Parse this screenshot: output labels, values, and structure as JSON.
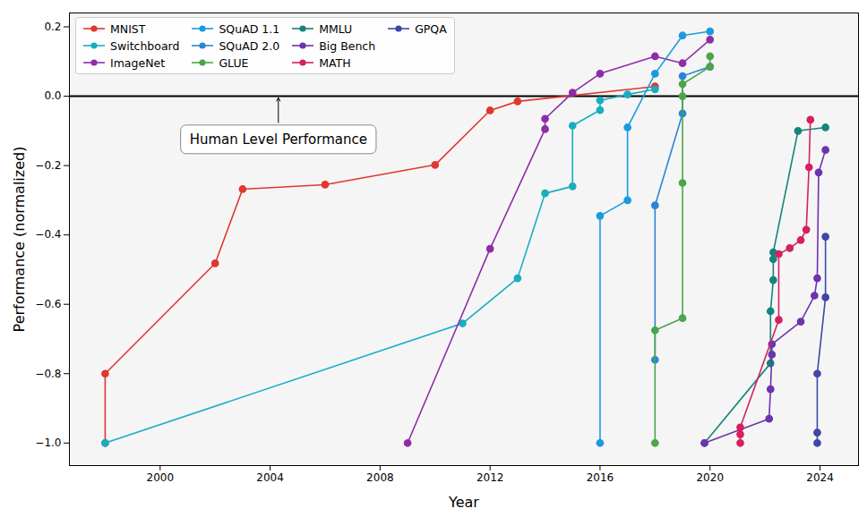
{
  "chart_data": {
    "type": "line",
    "xlabel": "Year",
    "ylabel": "Performance (normalized)",
    "xlim": [
      1996.7,
      2025.4
    ],
    "xticks": [
      2000,
      2004,
      2008,
      2012,
      2016,
      2020,
      2024
    ],
    "ylim": [
      -1.065,
      0.24
    ],
    "yticks": [
      {
        "value": -1.0,
        "label": "−1.0"
      },
      {
        "value": -0.8,
        "label": "−0.8"
      },
      {
        "value": -0.6,
        "label": "−0.6"
      },
      {
        "value": -0.4,
        "label": "−0.4"
      },
      {
        "value": -0.2,
        "label": "−0.2"
      },
      {
        "value": 0.0,
        "label": "0.0"
      },
      {
        "value": 0.2,
        "label": "0.2"
      }
    ],
    "grid": false,
    "legend": "upper left",
    "marker": "circle",
    "hlines": [
      {
        "y": 0,
        "color": "#000000"
      }
    ],
    "annotations": [
      {
        "text": "Human Level Performance",
        "x": 2004.3,
        "y": -0.125,
        "arrow_to": [
          2004.3,
          -0.005
        ]
      }
    ],
    "series": [
      {
        "name": "MNIST",
        "color": "#e0372f",
        "x": [
          1998,
          1998,
          2002,
          2003,
          2006,
          2010,
          2012,
          2013,
          2018
        ],
        "values": [
          -1.0,
          -0.8,
          -0.482,
          -0.268,
          -0.255,
          -0.198,
          -0.041,
          -0.015,
          0.028
        ]
      },
      {
        "name": "Switchboard",
        "color": "#17aebf",
        "x": [
          1998,
          2011,
          2013,
          2014,
          2015,
          2015,
          2016,
          2016,
          2017,
          2018
        ],
        "values": [
          -1.0,
          -0.655,
          -0.525,
          -0.28,
          -0.26,
          -0.085,
          -0.04,
          -0.012,
          0.005,
          0.02
        ]
      },
      {
        "name": "ImageNet",
        "color": "#8f2ca8",
        "x": [
          2009,
          2012,
          2014,
          2014,
          2015,
          2016,
          2018,
          2019,
          2020
        ],
        "values": [
          -1.0,
          -0.44,
          -0.095,
          -0.065,
          0.01,
          0.065,
          0.115,
          0.095,
          0.163
        ]
      },
      {
        "name": "SQuAD 1.1",
        "color": "#1a9be0",
        "x": [
          2016,
          2016,
          2017,
          2017,
          2018,
          2019,
          2020
        ],
        "values": [
          -1.0,
          -0.345,
          -0.3,
          -0.09,
          0.065,
          0.175,
          0.187
        ]
      },
      {
        "name": "SQuAD 2.0",
        "color": "#2a85d6",
        "x": [
          2018,
          2018,
          2019,
          2019,
          2020
        ],
        "values": [
          -0.76,
          -0.315,
          -0.05,
          0.058,
          0.085
        ]
      },
      {
        "name": "GLUE",
        "color": "#4ba54a",
        "x": [
          2018,
          2018,
          2019,
          2019,
          2019,
          2019,
          2020,
          2020
        ],
        "values": [
          -1.0,
          -0.675,
          -0.64,
          -0.25,
          0.0,
          0.035,
          0.085,
          0.115
        ]
      },
      {
        "name": "MMLU",
        "color": "#14857a",
        "x": [
          2019.8,
          2022.2,
          2022.2,
          2022.3,
          2022.3,
          2022.3,
          2023.2,
          2024.2
        ],
        "values": [
          -1.0,
          -0.77,
          -0.62,
          -0.53,
          -0.47,
          -0.45,
          -0.1,
          -0.09
        ]
      },
      {
        "name": "Big Bench",
        "color": "#6f32b0",
        "x": [
          2019.8,
          2022.15,
          2022.2,
          2022.25,
          2022.25,
          2023.3,
          2023.8,
          2023.9,
          2023.95,
          2024.2
        ],
        "values": [
          -1.0,
          -0.93,
          -0.845,
          -0.745,
          -0.715,
          -0.65,
          -0.575,
          -0.525,
          -0.22,
          -0.155
        ]
      },
      {
        "name": "MATH",
        "color": "#d6205f",
        "x": [
          2021.1,
          2021.1,
          2021.1,
          2022.5,
          2022.5,
          2022.9,
          2023.3,
          2023.5,
          2023.6,
          2023.65
        ],
        "values": [
          -1.0,
          -0.975,
          -0.955,
          -0.645,
          -0.455,
          -0.438,
          -0.415,
          -0.385,
          -0.205,
          -0.068
        ]
      },
      {
        "name": "GPQA",
        "color": "#3f46a8",
        "x": [
          2023.9,
          2023.9,
          2023.9,
          2024.2,
          2024.2
        ],
        "values": [
          -1.0,
          -0.97,
          -0.8,
          -0.58,
          -0.405
        ]
      }
    ]
  }
}
